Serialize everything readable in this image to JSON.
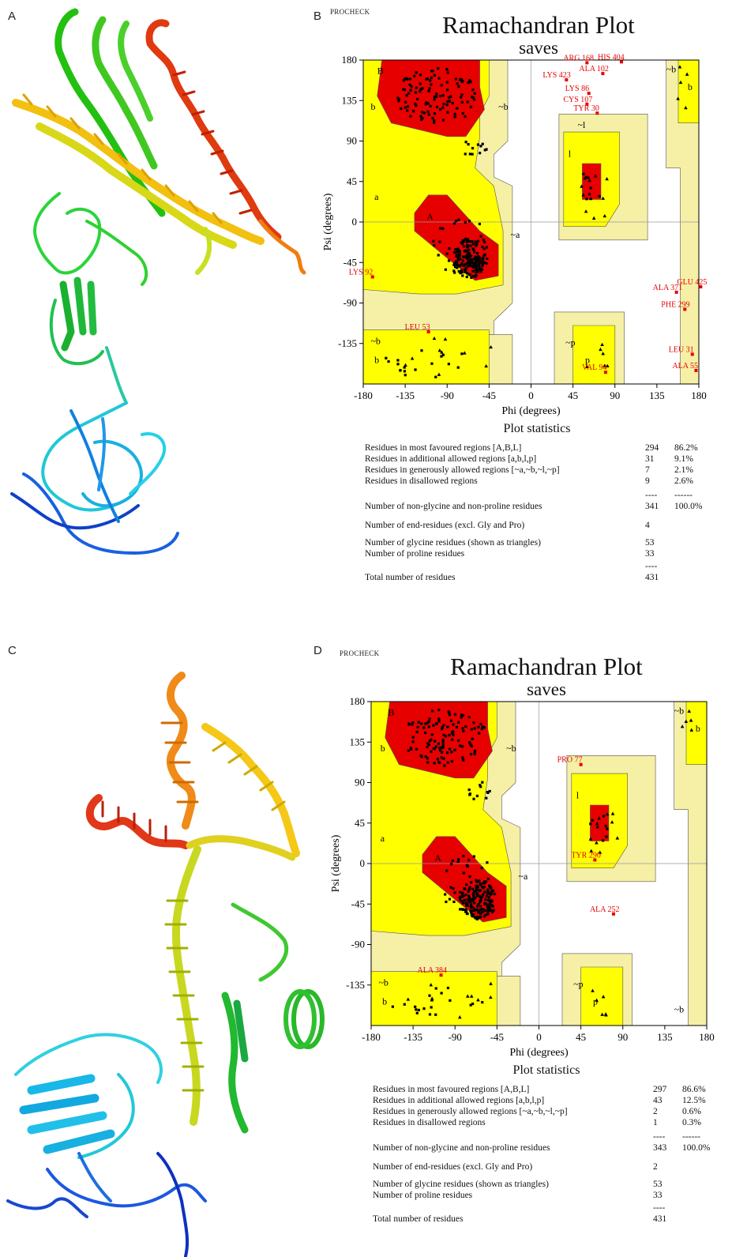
{
  "panels": {
    "a": "A",
    "b": "B",
    "c": "C",
    "d": "D"
  },
  "colors": {
    "core": "#e60000",
    "allowed": "#ffff00",
    "generous": "#f5f0a6",
    "disallowed": "#ffffff",
    "label": "#e60000",
    "point": "#000000"
  },
  "plots": [
    {
      "procheck": "PROCHECK",
      "title": "Ramachandran Plot",
      "subtitle": "saves",
      "stats_title": "Plot statistics",
      "stats": [
        {
          "label": "Residues in most favoured regions  [A,B,L]",
          "count": "294",
          "pct": "86.2%"
        },
        {
          "label": "Residues in additional allowed regions  [a,b,l,p]",
          "count": "31",
          "pct": "9.1%"
        },
        {
          "label": "Residues in generously allowed regions  [~a,~b,~l,~p]",
          "count": "7",
          "pct": "2.1%"
        },
        {
          "label": "Residues in disallowed regions",
          "count": "9",
          "pct": "2.6%"
        },
        {
          "label": "",
          "count": "----",
          "pct": "------"
        },
        {
          "label": "Number of non-glycine and non-proline residues",
          "count": "341",
          "pct": "100.0%"
        },
        {
          "label": "Number of end-residues (excl. Gly and Pro)",
          "count": "4",
          "pct": ""
        },
        {
          "label": "Number of glycine residues (shown as triangles)",
          "count": "53",
          "pct": ""
        },
        {
          "label": "Number of proline residues",
          "count": "33",
          "pct": ""
        },
        {
          "label": "",
          "count": "----",
          "pct": ""
        },
        {
          "label": "Total number of residues",
          "count": "431",
          "pct": ""
        }
      ]
    },
    {
      "procheck": "PROCHECK",
      "title": "Ramachandran Plot",
      "subtitle": "saves",
      "stats_title": "Plot statistics",
      "stats": [
        {
          "label": "Residues in most favoured regions  [A,B,L]",
          "count": "297",
          "pct": "86.6%"
        },
        {
          "label": "Residues in additional allowed regions  [a,b,l,p]",
          "count": "43",
          "pct": "12.5%"
        },
        {
          "label": "Residues in generously allowed regions  [~a,~b,~l,~p]",
          "count": "2",
          "pct": "0.6%"
        },
        {
          "label": "Residues in disallowed regions",
          "count": "1",
          "pct": "0.3%"
        },
        {
          "label": "",
          "count": "----",
          "pct": "------"
        },
        {
          "label": "Number of non-glycine and non-proline residues",
          "count": "343",
          "pct": "100.0%"
        },
        {
          "label": "Number of end-residues (excl. Gly and Pro)",
          "count": "2",
          "pct": ""
        },
        {
          "label": "Number of glycine residues (shown as triangles)",
          "count": "53",
          "pct": ""
        },
        {
          "label": "Number of proline residues",
          "count": "33",
          "pct": ""
        },
        {
          "label": "",
          "count": "----",
          "pct": ""
        },
        {
          "label": "Total number of residues",
          "count": "431",
          "pct": ""
        }
      ]
    }
  ],
  "chart_data": [
    {
      "type": "scatter",
      "title": "Ramachandran Plot",
      "subtitle": "saves",
      "xlabel": "Phi (degrees)",
      "ylabel": "Psi (degrees)",
      "xlim": [
        -180,
        180
      ],
      "ylim": [
        -180,
        180
      ],
      "xticks": [
        -180,
        -135,
        -90,
        -45,
        0,
        45,
        90,
        135,
        180
      ],
      "yticks": [
        180,
        135,
        90,
        45,
        0,
        -45,
        -90,
        -135
      ],
      "region_labels": [
        {
          "text": "B",
          "x": -165,
          "y": 168
        },
        {
          "text": "b",
          "x": -172,
          "y": 128
        },
        {
          "text": "~b",
          "x": -35,
          "y": 128
        },
        {
          "text": "~l",
          "x": 50,
          "y": 108
        },
        {
          "text": "l",
          "x": 40,
          "y": 76
        },
        {
          "text": "a",
          "x": -168,
          "y": 28
        },
        {
          "text": "A",
          "x": -112,
          "y": 6
        },
        {
          "text": "~a",
          "x": -22,
          "y": -14
        },
        {
          "text": "~b",
          "x": -172,
          "y": -132
        },
        {
          "text": "b",
          "x": -168,
          "y": -153
        },
        {
          "text": "~p",
          "x": 37,
          "y": -134
        },
        {
          "text": "p",
          "x": 58,
          "y": -153
        },
        {
          "text": "~b",
          "x": 145,
          "y": 170
        },
        {
          "text": "b",
          "x": 168,
          "y": 150
        }
      ],
      "outlier_labels": [
        {
          "text": "ARG 168",
          "x": 60,
          "y": 177
        },
        {
          "text": "HIS 404",
          "x": 97,
          "y": 178
        },
        {
          "text": "ALA 102",
          "x": 77,
          "y": 165
        },
        {
          "text": "LYS 423",
          "x": 38,
          "y": 158
        },
        {
          "text": "LYS 86",
          "x": 62,
          "y": 143
        },
        {
          "text": "CYS 107",
          "x": 60,
          "y": 131
        },
        {
          "text": "TYR 30",
          "x": 71,
          "y": 121
        },
        {
          "text": "LYS 92",
          "x": -170,
          "y": -61
        },
        {
          "text": "ALA 371",
          "x": 156,
          "y": -78
        },
        {
          "text": "GLU 425",
          "x": 182,
          "y": -72
        },
        {
          "text": "PHE 299",
          "x": 165,
          "y": -97
        },
        {
          "text": "LEU 53",
          "x": -110,
          "y": -122
        },
        {
          "text": "LEU 31",
          "x": 173,
          "y": -147
        },
        {
          "text": "ALA 55",
          "x": 177,
          "y": -165
        },
        {
          "text": "VAL 94",
          "x": 80,
          "y": -167
        }
      ]
    },
    {
      "type": "scatter",
      "title": "Ramachandran Plot",
      "subtitle": "saves",
      "xlabel": "Phi (degrees)",
      "ylabel": "Psi (degrees)",
      "xlim": [
        -180,
        180
      ],
      "ylim": [
        -180,
        180
      ],
      "xticks": [
        -180,
        -135,
        -90,
        -45,
        0,
        45,
        90,
        135,
        180
      ],
      "yticks": [
        180,
        135,
        90,
        45,
        0,
        -45,
        -90,
        -135
      ],
      "region_labels": [
        {
          "text": "B",
          "x": -162,
          "y": 168
        },
        {
          "text": "b",
          "x": -170,
          "y": 128
        },
        {
          "text": "~b",
          "x": -35,
          "y": 128
        },
        {
          "text": "l",
          "x": 40,
          "y": 76
        },
        {
          "text": "a",
          "x": -170,
          "y": 28
        },
        {
          "text": "A",
          "x": -112,
          "y": 6
        },
        {
          "text": "~a",
          "x": -22,
          "y": -14
        },
        {
          "text": "~b",
          "x": -172,
          "y": -132
        },
        {
          "text": "b",
          "x": -168,
          "y": -153
        },
        {
          "text": "~p",
          "x": 37,
          "y": -134
        },
        {
          "text": "p",
          "x": 58,
          "y": -153
        },
        {
          "text": "~b",
          "x": 145,
          "y": 170
        },
        {
          "text": "b",
          "x": 168,
          "y": 150
        },
        {
          "text": "~b",
          "x": 145,
          "y": -162
        }
      ],
      "outlier_labels": [
        {
          "text": "PRO 77",
          "x": 45,
          "y": 110
        },
        {
          "text": "TYR 290",
          "x": 60,
          "y": 4
        },
        {
          "text": "ALA 252",
          "x": 80,
          "y": -56
        },
        {
          "text": "ALA 384",
          "x": -105,
          "y": -124
        }
      ]
    }
  ]
}
